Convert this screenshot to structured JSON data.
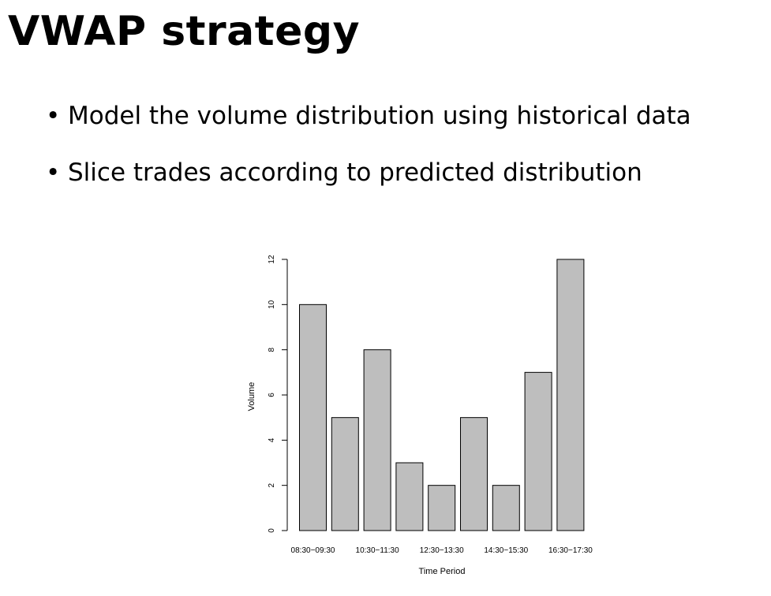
{
  "slide": {
    "title": "VWAP strategy",
    "bullets": [
      "Model the volume distribution using historical data",
      "Slice trades according to predicted distribution"
    ]
  },
  "chart_data": {
    "type": "bar",
    "categories": [
      "08:30−09:30",
      "",
      "10:30−11:30",
      "",
      "12:30−13:30",
      "",
      "14:30−15:30",
      "",
      "16:30−17:30"
    ],
    "values": [
      10,
      5,
      8,
      3,
      2,
      5,
      2,
      7,
      12
    ],
    "title": "",
    "xlabel": "Time Period",
    "ylabel": "Volume",
    "ylim": [
      0,
      12
    ],
    "yticks": [
      "0",
      "2",
      "4",
      "6",
      "8",
      "10",
      "12"
    ],
    "bar_color": "#bebebe",
    "bar_edge": "#000000",
    "grid": false,
    "legend": "none"
  }
}
